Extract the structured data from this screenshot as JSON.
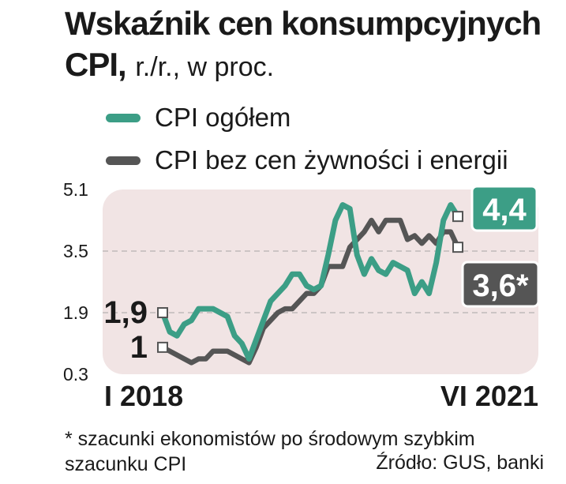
{
  "title": {
    "line1": "Wskaźnik cen konsumpcyjnych",
    "line2_bold": "CPI,",
    "line2_light": "r./r., w proc."
  },
  "legend": [
    {
      "label": "CPI ogółem",
      "color": "#3c9e86"
    },
    {
      "label": "CPI bez cen żywności i energii",
      "color": "#555555"
    }
  ],
  "footnote": "* szacunki ekonomistów po środowym szybkim szacunku CPI",
  "source": "Źródło: GUS, banki",
  "chart_data": {
    "type": "line",
    "x_start_label": "I 2018",
    "x_end_label": "VI 2021",
    "ylim": [
      0.3,
      5.1
    ],
    "yticks": [
      "5.1",
      "3.5",
      "1.9",
      "0.3"
    ],
    "series": [
      {
        "name": "CPI ogółem",
        "color": "#3c9e86",
        "start_label": "1,9",
        "end_label": "4,4",
        "values": [
          1.9,
          1.4,
          1.3,
          1.6,
          1.7,
          2.0,
          2.0,
          2.0,
          1.9,
          1.8,
          1.3,
          1.1,
          0.7,
          1.2,
          1.7,
          2.2,
          2.4,
          2.6,
          2.9,
          2.9,
          2.6,
          2.5,
          2.6,
          3.4,
          4.3,
          4.7,
          4.6,
          3.4,
          2.9,
          3.3,
          3.0,
          2.9,
          3.2,
          3.1,
          3.0,
          2.4,
          2.7,
          2.4,
          3.2,
          4.3,
          4.7,
          4.4
        ]
      },
      {
        "name": "CPI bez cen żywności i energii",
        "color": "#555555",
        "start_label": "1",
        "end_label": "3,6*",
        "values": [
          1.0,
          0.9,
          0.8,
          0.7,
          0.6,
          0.7,
          0.7,
          0.9,
          0.9,
          0.9,
          0.8,
          0.7,
          0.6,
          1.0,
          1.5,
          1.7,
          1.9,
          2.0,
          2.0,
          2.2,
          2.4,
          2.4,
          2.6,
          3.1,
          3.1,
          3.1,
          3.6,
          3.8,
          4.0,
          4.3,
          4.0,
          4.3,
          4.3,
          4.3,
          3.8,
          3.9,
          3.7,
          3.9,
          3.7,
          4.0,
          4.0,
          3.6
        ]
      }
    ]
  }
}
